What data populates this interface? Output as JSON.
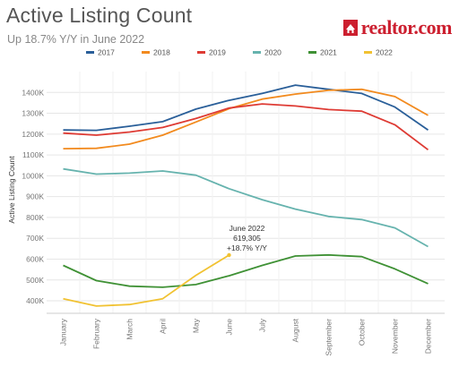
{
  "header": {
    "title": "Active Listing Count",
    "subtitle": "Up 18.7% Y/Y in June 2022"
  },
  "logo": {
    "text": "realtor.com",
    "color": "#cc1f2f",
    "icon": "house-icon"
  },
  "chart_data": {
    "type": "line",
    "title": "Active Listing Count",
    "subtitle": "Up 18.7% Y/Y in June 2022",
    "xlabel": "",
    "ylabel": "Active Listing Count",
    "categories": [
      "January",
      "February",
      "March",
      "April",
      "May",
      "June",
      "July",
      "August",
      "September",
      "October",
      "November",
      "December"
    ],
    "ylim": [
      340000,
      1500000
    ],
    "yticks": [
      400000,
      500000,
      600000,
      700000,
      800000,
      900000,
      1000000,
      1100000,
      1200000,
      1300000,
      1400000
    ],
    "ytick_labels": [
      "400K",
      "500K",
      "600K",
      "700K",
      "800K",
      "900K",
      "1000K",
      "1100K",
      "1200K",
      "1300K",
      "1400K"
    ],
    "grid": true,
    "legend_position": "top",
    "series": [
      {
        "name": "2017",
        "color": "#2a5f99",
        "values": [
          1220000,
          1218000,
          1238000,
          1260000,
          1320000,
          1362000,
          1395000,
          1435000,
          1415000,
          1395000,
          1330000,
          1220000
        ]
      },
      {
        "name": "2018",
        "color": "#f28a1e",
        "values": [
          1130000,
          1132000,
          1152000,
          1195000,
          1258000,
          1322000,
          1368000,
          1392000,
          1410000,
          1415000,
          1380000,
          1290000
        ]
      },
      {
        "name": "2019",
        "color": "#de3b34",
        "values": [
          1205000,
          1195000,
          1210000,
          1232000,
          1275000,
          1325000,
          1345000,
          1335000,
          1318000,
          1310000,
          1245000,
          1125000
        ]
      },
      {
        "name": "2020",
        "color": "#66b3ae",
        "values": [
          1033000,
          1008000,
          1013000,
          1023000,
          1003000,
          938000,
          885000,
          840000,
          805000,
          790000,
          750000,
          660000
        ]
      },
      {
        "name": "2021",
        "color": "#3f9135",
        "values": [
          570000,
          497000,
          470000,
          465000,
          478000,
          520000,
          570000,
          615000,
          620000,
          612000,
          553000,
          482000
        ]
      },
      {
        "name": "2022",
        "color": "#f1c232",
        "values": [
          410000,
          375000,
          382000,
          410000,
          522000,
          619305,
          null,
          null,
          null,
          null,
          null,
          null
        ]
      }
    ],
    "annotation": {
      "series": "2022",
      "category": "June",
      "lines": [
        "June 2022",
        "619,305",
        "+18.7% Y/Y"
      ]
    }
  }
}
